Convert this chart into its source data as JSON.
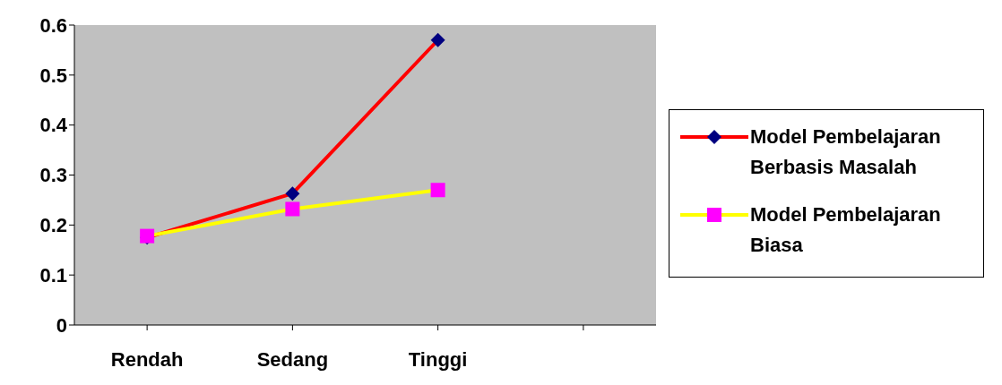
{
  "chart_data": {
    "type": "line",
    "categories": [
      "Rendah",
      "Sedang",
      "Tinggi",
      null
    ],
    "series": [
      {
        "name": "Model Pembelajaran Berbasis Masalah",
        "color": "#ff0000",
        "marker": "diamond",
        "values": [
          0.175,
          0.263,
          0.57,
          null
        ]
      },
      {
        "name": "Model Pembelajaran Biasa",
        "color": "#ffff00",
        "marker": "square",
        "values": [
          0.178,
          0.232,
          0.27,
          null
        ]
      }
    ],
    "ylim": [
      0,
      0.6
    ],
    "yticks": [
      0,
      0.1,
      0.2,
      0.3,
      0.4,
      0.5,
      0.6
    ],
    "grid": false,
    "legend": "right",
    "line_style": "solid"
  }
}
